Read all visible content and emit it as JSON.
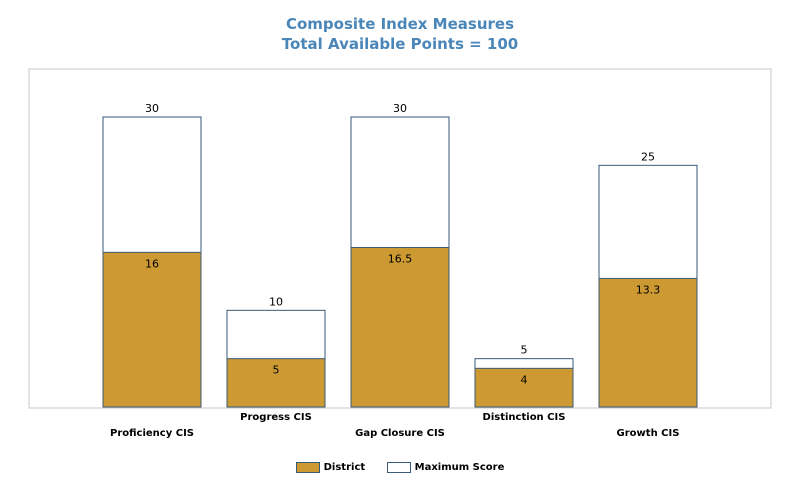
{
  "chart_data": {
    "type": "bar",
    "title": "Composite Index Measures",
    "subtitle": "Total Available Points = 100",
    "categories": [
      "Proficiency CIS",
      "Progress CIS",
      "Gap Closure CIS",
      "Distinction CIS",
      "Growth CIS"
    ],
    "series": [
      {
        "name": "District",
        "values": [
          16,
          5,
          16.5,
          4,
          13.3
        ],
        "color": "#cc9933"
      },
      {
        "name": "Maximum Score",
        "values": [
          30,
          10,
          30,
          5,
          25
        ],
        "color": "#ffffff"
      }
    ],
    "ylim": [
      0,
      30
    ],
    "grid": false,
    "legend_position": "bottom-center",
    "bar_style": "overlapping",
    "border_color": "#3b5a78",
    "frame_color": "#c8c8c8"
  }
}
